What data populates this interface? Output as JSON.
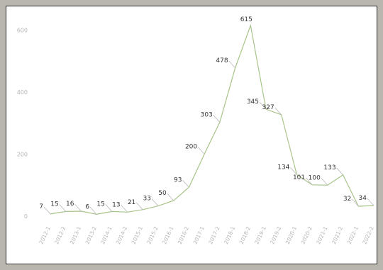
{
  "chart_data": {
    "type": "line",
    "title": "",
    "xlabel": "",
    "ylabel": "",
    "ylim": [
      0,
      640
    ],
    "yticks": [
      0,
      200,
      400,
      600
    ],
    "grid": false,
    "legend": "none",
    "line_color": "#a7c488",
    "categories": [
      "2012-1",
      "2012-2",
      "2013-1",
      "2013-2",
      "2014-1",
      "2014-2",
      "2015-1",
      "2015-2",
      "2016-1",
      "2016-2",
      "2017-1",
      "2017-2",
      "2018-1",
      "2018-2",
      "2019-1",
      "2019-2",
      "2020-1",
      "2020-2",
      "2021-1",
      "2021-2",
      "2022-1",
      "2022-2"
    ],
    "series": [
      {
        "values": [
          7,
          15,
          16,
          6,
          15,
          13,
          21,
          33,
          50,
          93,
          200,
          303,
          478,
          615,
          345,
          327,
          134,
          101,
          100,
          133,
          32,
          34
        ]
      }
    ],
    "point_labels": [
      "7",
      "15",
      "16",
      "6",
      "15",
      "13",
      "21",
      "33",
      "50",
      "93",
      "200",
      "303",
      "478",
      "615",
      "345",
      "327",
      "134",
      "101",
      "100",
      "133",
      "32",
      "34"
    ]
  }
}
